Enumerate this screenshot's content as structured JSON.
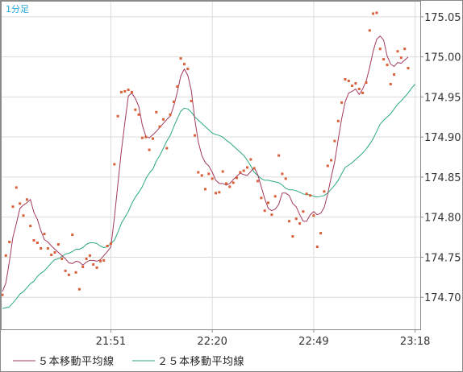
{
  "period_label": "1分足",
  "colors": {
    "ma5": "#a33a5e",
    "ma25": "#2aaa7e",
    "points": "#d9603a",
    "grid": "#dcdcdc",
    "frame": "#8a8a8a"
  },
  "legend": [
    {
      "label": "５本移動平均線",
      "color": "#a33a5e"
    },
    {
      "label": "２５本移動平均線",
      "color": "#2aaa7e"
    }
  ],
  "chart_data": {
    "type": "line",
    "xlabel": "",
    "ylabel": "",
    "x_ticks": [
      {
        "label": "21:51",
        "index": 31
      },
      {
        "label": "22:20",
        "index": 60
      },
      {
        "label": "22:49",
        "index": 89
      },
      {
        "label": "23:18",
        "index": 118
      }
    ],
    "x_range": [
      0,
      119
    ],
    "y_ticks": [
      "174.70",
      "174.75",
      "174.80",
      "174.85",
      "174.90",
      "174.95",
      "175.00",
      "175.05"
    ],
    "ylim": [
      174.66,
      175.07
    ],
    "grid": true,
    "points": [
      [
        0,
        174.703
      ],
      [
        1,
        174.752
      ],
      [
        2,
        174.769
      ],
      [
        3,
        174.813
      ],
      [
        4,
        174.837
      ],
      [
        5,
        174.817
      ],
      [
        6,
        174.802
      ],
      [
        7,
        174.822
      ],
      [
        8,
        174.789
      ],
      [
        9,
        174.771
      ],
      [
        10,
        174.768
      ],
      [
        11,
        174.761
      ],
      [
        12,
        174.779
      ],
      [
        13,
        174.761
      ],
      [
        14,
        174.753
      ],
      [
        15,
        174.756
      ],
      [
        16,
        174.766
      ],
      [
        17,
        174.748
      ],
      [
        18,
        174.733
      ],
      [
        19,
        174.728
      ],
      [
        20,
        174.778
      ],
      [
        21,
        174.731
      ],
      [
        22,
        174.71
      ],
      [
        23,
        174.738
      ],
      [
        24,
        174.748
      ],
      [
        25,
        174.752
      ],
      [
        26,
        174.741
      ],
      [
        27,
        174.737
      ],
      [
        28,
        174.745
      ],
      [
        29,
        174.746
      ],
      [
        30,
        174.764
      ],
      [
        31,
        174.767
      ],
      [
        32,
        174.866
      ],
      [
        33,
        174.926
      ],
      [
        34,
        174.956
      ],
      [
        35,
        174.957
      ],
      [
        36,
        174.959
      ],
      [
        37,
        174.956
      ],
      [
        38,
        174.934
      ],
      [
        39,
        174.928
      ],
      [
        40,
        174.899
      ],
      [
        41,
        174.9
      ],
      [
        42,
        174.884
      ],
      [
        43,
        174.898
      ],
      [
        44,
        174.931
      ],
      [
        45,
        174.913
      ],
      [
        46,
        174.922
      ],
      [
        47,
        174.886
      ],
      [
        48,
        174.928
      ],
      [
        49,
        174.944
      ],
      [
        50,
        174.963
      ],
      [
        51,
        174.998
      ],
      [
        52,
        174.991
      ],
      [
        53,
        174.985
      ],
      [
        54,
        174.945
      ],
      [
        55,
        174.902
      ],
      [
        56,
        174.856
      ],
      [
        57,
        174.852
      ],
      [
        58,
        174.835
      ],
      [
        59,
        174.854
      ],
      [
        60,
        174.848
      ],
      [
        61,
        174.83
      ],
      [
        62,
        174.831
      ],
      [
        63,
        174.857
      ],
      [
        64,
        174.842
      ],
      [
        65,
        174.838
      ],
      [
        66,
        174.843
      ],
      [
        67,
        174.849
      ],
      [
        68,
        174.856
      ],
      [
        69,
        174.858
      ],
      [
        70,
        174.862
      ],
      [
        71,
        174.872
      ],
      [
        72,
        174.861
      ],
      [
        73,
        174.845
      ],
      [
        74,
        174.824
      ],
      [
        75,
        174.808
      ],
      [
        76,
        174.818
      ],
      [
        77,
        174.803
      ],
      [
        78,
        174.826
      ],
      [
        79,
        174.877
      ],
      [
        80,
        174.854
      ],
      [
        81,
        174.848
      ],
      [
        82,
        174.795
      ],
      [
        83,
        174.776
      ],
      [
        84,
        174.798
      ],
      [
        85,
        174.792
      ],
      [
        86,
        174.807
      ],
      [
        87,
        174.829
      ],
      [
        88,
        174.827
      ],
      [
        89,
        174.802
      ],
      [
        90,
        174.763
      ],
      [
        91,
        174.78
      ],
      [
        92,
        174.832
      ],
      [
        93,
        174.864
      ],
      [
        94,
        174.871
      ],
      [
        95,
        174.895
      ],
      [
        96,
        174.92
      ],
      [
        97,
        174.943
      ],
      [
        98,
        174.972
      ],
      [
        99,
        174.97
      ],
      [
        100,
        174.964
      ],
      [
        101,
        174.967
      ],
      [
        102,
        174.96
      ],
      [
        103,
        174.955
      ],
      [
        104,
        174.968
      ],
      [
        105,
        175.033
      ],
      [
        106,
        175.054
      ],
      [
        107,
        175.055
      ],
      [
        108,
        175.01
      ],
      [
        109,
        174.997
      ],
      [
        110,
        174.99
      ],
      [
        111,
        174.966
      ],
      [
        112,
        174.978
      ],
      [
        113,
        175.007
      ],
      [
        114,
        174.999
      ],
      [
        115,
        175.01
      ],
      [
        116,
        174.986
      ]
    ],
    "series": [
      {
        "name": "５本移動平均線",
        "x": [
          0,
          1,
          2,
          3,
          4,
          5,
          6,
          7,
          8,
          9,
          10,
          11,
          12,
          13,
          14,
          15,
          16,
          17,
          18,
          19,
          20,
          21,
          22,
          23,
          24,
          25,
          26,
          27,
          28,
          29,
          30,
          31,
          32,
          33,
          34,
          35,
          36,
          37,
          38,
          39,
          40,
          41,
          42,
          43,
          44,
          45,
          46,
          47,
          48,
          49,
          50,
          51,
          52,
          53,
          54,
          55,
          56,
          57,
          58,
          59,
          60,
          61,
          62,
          63,
          64,
          65,
          66,
          67,
          68,
          69,
          70,
          71,
          72,
          73,
          74,
          75,
          76,
          77,
          78,
          79,
          80,
          81,
          82,
          83,
          84,
          85,
          86,
          87,
          88,
          89,
          90,
          91,
          92,
          93,
          94,
          95,
          96,
          97,
          98,
          99,
          100,
          101,
          102,
          103,
          104,
          105,
          106,
          107,
          108,
          109,
          110,
          111,
          112,
          113,
          114,
          115,
          116
        ],
        "values": [
          174.707,
          174.718,
          174.745,
          174.775,
          174.792,
          174.811,
          174.815,
          174.818,
          174.822,
          174.806,
          174.797,
          174.783,
          174.772,
          174.769,
          174.764,
          174.76,
          174.756,
          174.752,
          174.748,
          174.743,
          174.742,
          174.745,
          174.744,
          174.74,
          174.744,
          174.746,
          174.746,
          174.745,
          174.747,
          174.752,
          174.757,
          174.763,
          174.799,
          174.841,
          174.882,
          174.918,
          174.951,
          174.955,
          174.948,
          174.938,
          174.915,
          174.901,
          174.899,
          174.903,
          174.907,
          174.912,
          174.917,
          174.922,
          174.926,
          174.939,
          174.956,
          174.976,
          174.985,
          174.977,
          174.958,
          174.922,
          174.894,
          174.877,
          174.868,
          174.864,
          174.856,
          174.846,
          174.842,
          174.842,
          174.84,
          174.842,
          174.847,
          174.851,
          174.855,
          174.853,
          174.852,
          174.857,
          174.862,
          174.853,
          174.838,
          174.823,
          174.811,
          174.808,
          174.81,
          174.816,
          174.83,
          174.83,
          174.827,
          174.817,
          174.813,
          174.803,
          174.795,
          174.795,
          174.803,
          174.807,
          174.803,
          174.805,
          174.812,
          174.829,
          174.85,
          174.869,
          174.897,
          174.923,
          174.944,
          174.955,
          174.957,
          174.96,
          174.953,
          174.96,
          174.97,
          174.987,
          175.007,
          175.022,
          175.026,
          175.021,
          175.001,
          174.991,
          174.988,
          174.993,
          174.992,
          174.996,
          175.0
        ]
      },
      {
        "name": "２５本移動平均線",
        "x": [
          0,
          1,
          2,
          3,
          4,
          5,
          6,
          7,
          8,
          9,
          10,
          11,
          12,
          13,
          14,
          15,
          16,
          17,
          18,
          19,
          20,
          21,
          22,
          23,
          24,
          25,
          26,
          27,
          28,
          29,
          30,
          31,
          32,
          33,
          34,
          35,
          36,
          37,
          38,
          39,
          40,
          41,
          42,
          43,
          44,
          45,
          46,
          47,
          48,
          49,
          50,
          51,
          52,
          53,
          54,
          55,
          56,
          57,
          58,
          59,
          60,
          61,
          62,
          63,
          64,
          65,
          66,
          67,
          68,
          69,
          70,
          71,
          72,
          73,
          74,
          75,
          76,
          77,
          78,
          79,
          80,
          81,
          82,
          83,
          84,
          85,
          86,
          87,
          88,
          89,
          90,
          91,
          92,
          93,
          94,
          95,
          96,
          97,
          98,
          99,
          100,
          101,
          102,
          103,
          104,
          105,
          106,
          107,
          108,
          109,
          110,
          111,
          112,
          113,
          114,
          115,
          116,
          117,
          118
        ],
        "values": [
          174.686,
          174.687,
          174.688,
          174.693,
          174.698,
          174.704,
          174.707,
          174.712,
          174.717,
          174.72,
          174.726,
          174.73,
          174.733,
          174.738,
          174.743,
          174.747,
          174.748,
          174.751,
          174.754,
          174.755,
          174.757,
          174.76,
          174.76,
          174.762,
          174.766,
          174.768,
          174.768,
          174.767,
          174.764,
          174.762,
          174.763,
          174.767,
          174.771,
          174.781,
          174.792,
          174.8,
          174.807,
          174.817,
          174.825,
          174.831,
          174.838,
          174.848,
          174.855,
          174.86,
          174.87,
          174.877,
          174.886,
          174.895,
          174.902,
          174.913,
          174.923,
          174.932,
          174.936,
          174.935,
          174.931,
          174.925,
          174.921,
          174.917,
          174.913,
          174.909,
          174.905,
          174.903,
          174.902,
          174.9,
          174.896,
          174.893,
          174.889,
          174.885,
          174.881,
          174.877,
          174.871,
          174.864,
          174.856,
          174.852,
          174.848,
          174.846,
          174.846,
          174.845,
          174.844,
          174.843,
          174.84,
          174.836,
          174.834,
          174.834,
          174.833,
          174.831,
          174.829,
          174.828,
          174.828,
          174.826,
          174.825,
          174.826,
          174.827,
          174.83,
          174.835,
          174.84,
          174.846,
          174.854,
          174.862,
          174.865,
          174.868,
          174.872,
          174.876,
          174.88,
          174.885,
          174.891,
          174.898,
          174.907,
          174.916,
          174.921,
          174.925,
          174.929,
          174.935,
          174.941,
          174.945,
          174.95,
          174.955,
          174.961,
          174.966
        ]
      }
    ]
  }
}
